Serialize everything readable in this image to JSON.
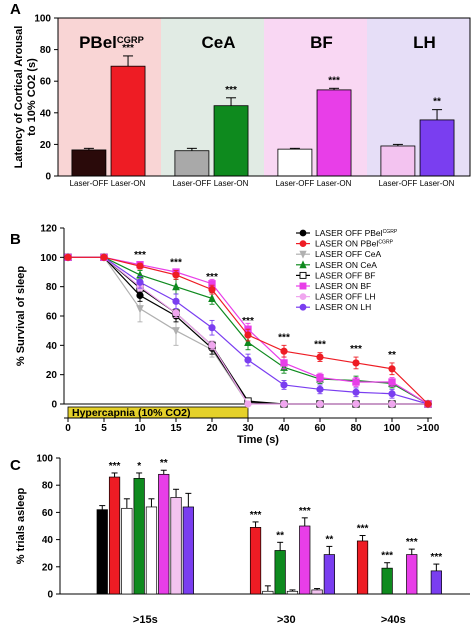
{
  "chart_data": [
    {
      "panel": "A",
      "type": "bar",
      "ylabel_lines": [
        "Latency of Cortical Arousal",
        "to 10% CO2 (s)"
      ],
      "ylim": [
        0,
        100
      ],
      "yticks": [
        0,
        20,
        40,
        60,
        80,
        100
      ],
      "groups": [
        {
          "name": "PBel",
          "name_sup": "CGRP",
          "bg": "#f9d5d5",
          "bars": [
            {
              "label": "Laser-OFF",
              "value": 16.5,
              "err": 1.0,
              "color": "#2a0a0a",
              "stars": ""
            },
            {
              "label": "Laser-ON",
              "value": 69.5,
              "err": 6.5,
              "color": "#ee1c24",
              "stars": "***"
            }
          ]
        },
        {
          "name": "CeA",
          "name_sup": "",
          "bg": "#e1ebe4",
          "bars": [
            {
              "label": "Laser-OFF",
              "value": 16.0,
              "err": 1.5,
              "color": "#a9a9a9",
              "stars": ""
            },
            {
              "label": "Laser-ON",
              "value": 44.5,
              "err": 5.0,
              "color": "#0e8a1e",
              "stars": "***"
            }
          ]
        },
        {
          "name": "BF",
          "name_sup": "",
          "bg": "#f9d7f3",
          "bars": [
            {
              "label": "Laser-OFF",
              "value": 17.0,
              "err": 0.5,
              "color": "#ffffff",
              "stars": ""
            },
            {
              "label": "Laser-ON",
              "value": 54.5,
              "err": 1.0,
              "color": "#e83ee8",
              "stars": "***"
            }
          ]
        },
        {
          "name": "LH",
          "name_sup": "",
          "bg": "#e6def7",
          "bars": [
            {
              "label": "Laser-OFF",
              "value": 19.0,
              "err": 1.0,
              "color": "#f3c3f0",
              "stars": ""
            },
            {
              "label": "Laser-ON",
              "value": 35.5,
              "err": 6.5,
              "color": "#7a3ef0",
              "stars": "**"
            }
          ]
        }
      ]
    },
    {
      "panel": "B",
      "type": "line",
      "ylabel": "% Survival of sleep",
      "xlabel": "Time (s)",
      "ylim": [
        0,
        120
      ],
      "yticks": [
        0,
        20,
        40,
        60,
        80,
        100,
        120
      ],
      "x": [
        "0",
        "5",
        "10",
        "15",
        "20",
        "30",
        "40",
        "60",
        "80",
        "100",
        ">100"
      ],
      "stim_label": "Hypercapnia (10% CO2)",
      "stim_range": [
        "0",
        "30"
      ],
      "stars": [
        {
          "x": "10",
          "text": "***"
        },
        {
          "x": "15",
          "text": "***"
        },
        {
          "x": "20",
          "text": "***"
        },
        {
          "x": "30",
          "text": "***"
        },
        {
          "x": "40",
          "text": "***"
        },
        {
          "x": "60",
          "text": "***"
        },
        {
          "x": "80",
          "text": "***"
        },
        {
          "x": "100",
          "text": "**"
        }
      ],
      "series": [
        {
          "name": "LASER OFF PBel",
          "sup": "CGRP",
          "color": "#000000",
          "fill": "#000000",
          "marker": "circle",
          "values": [
            100,
            100,
            74,
            60,
            38,
            1,
            0,
            0,
            0,
            0,
            0
          ],
          "err": [
            0,
            0,
            4,
            4,
            4,
            1,
            0,
            0,
            0,
            0,
            0
          ]
        },
        {
          "name": "LASER ON PBel",
          "sup": "CGRP",
          "color": "#ee1c24",
          "fill": "#ee1c24",
          "marker": "circle",
          "values": [
            100,
            100,
            94,
            88,
            78,
            47,
            36,
            32,
            28,
            24,
            0
          ],
          "err": [
            0,
            0,
            2,
            3,
            3,
            4,
            4,
            3,
            4,
            4,
            0
          ]
        },
        {
          "name": "LASER OFF CeA",
          "sup": "",
          "color": "#b0b0b0",
          "fill": "#b0b0b0",
          "marker": "tri-down",
          "values": [
            100,
            100,
            65,
            50,
            37,
            0,
            0,
            0,
            0,
            0,
            0
          ],
          "err": [
            0,
            0,
            9,
            10,
            5,
            1,
            0,
            0,
            0,
            0,
            0
          ]
        },
        {
          "name": "LASER ON CeA",
          "sup": "",
          "color": "#0e8a1e",
          "fill": "#0e8a1e",
          "marker": "tri-up",
          "values": [
            100,
            100,
            88,
            80,
            72,
            42,
            25,
            17,
            16,
            14,
            0
          ],
          "err": [
            0,
            0,
            3,
            5,
            4,
            5,
            4,
            3,
            3,
            3,
            0
          ]
        },
        {
          "name": "LASER OFF BF",
          "sup": "",
          "color": "#000000",
          "fill": "#ffffff",
          "marker": "square",
          "values": [
            100,
            100,
            79,
            62,
            40,
            2,
            0,
            0,
            0,
            0,
            0
          ],
          "err": [
            0,
            0,
            3,
            3,
            3,
            1,
            0,
            0,
            0,
            0,
            0
          ]
        },
        {
          "name": "LASER ON BF",
          "sup": "",
          "color": "#e83ee8",
          "fill": "#e83ee8",
          "marker": "square",
          "values": [
            100,
            100,
            95,
            90,
            82,
            51,
            28,
            18,
            15,
            15,
            0
          ],
          "err": [
            0,
            0,
            2,
            2,
            3,
            4,
            4,
            3,
            3,
            3,
            0
          ]
        },
        {
          "name": "LASER OFF LH",
          "sup": "",
          "color": "#f0a6ef",
          "fill": "#f0a6ef",
          "marker": "circle",
          "values": [
            100,
            100,
            80,
            62,
            40,
            0,
            0,
            0,
            0,
            0,
            0
          ],
          "err": [
            0,
            0,
            3,
            3,
            3,
            1,
            0,
            0,
            0,
            0,
            0
          ]
        },
        {
          "name": "LASER ON LH",
          "sup": "",
          "color": "#7a3ef0",
          "fill": "#7a3ef0",
          "marker": "circle",
          "values": [
            100,
            100,
            83,
            70,
            52,
            30,
            13,
            10,
            8,
            7,
            0
          ],
          "err": [
            0,
            0,
            4,
            5,
            5,
            4,
            3,
            3,
            3,
            3,
            0
          ]
        }
      ]
    },
    {
      "panel": "C",
      "type": "bar",
      "ylabel": "% trials asleep",
      "ylim": [
        0,
        100
      ],
      "yticks": [
        0,
        20,
        40,
        60,
        80,
        100
      ],
      "groups": [
        {
          "label": ">15s",
          "bars": [
            {
              "value": 62,
              "err": 3,
              "color": "#000000",
              "stars": ""
            },
            {
              "value": 86,
              "err": 3,
              "color": "#ee1c24",
              "stars": "***"
            },
            {
              "value": 63,
              "err": 7,
              "color": "#ffffff",
              "stars": ""
            },
            {
              "value": 85,
              "err": 4,
              "color": "#0e8a1e",
              "stars": "*"
            },
            {
              "value": 64,
              "err": 6,
              "color": "#ffffff",
              "stars": ""
            },
            {
              "value": 88,
              "err": 3,
              "color": "#e83ee8",
              "stars": "**"
            },
            {
              "value": 71,
              "err": 6,
              "color": "#f3c3f0",
              "stars": ""
            },
            {
              "value": 64,
              "err": 10,
              "color": "#7a3ef0",
              "stars": ""
            }
          ]
        },
        {
          "label": ">30",
          "bars": [
            {
              "value": 0,
              "err": 0,
              "color": "#000000",
              "stars": ""
            },
            {
              "value": 49,
              "err": 4,
              "color": "#ee1c24",
              "stars": "***"
            },
            {
              "value": 2,
              "err": 4,
              "color": "#ffffff",
              "stars": ""
            },
            {
              "value": 32,
              "err": 6,
              "color": "#0e8a1e",
              "stars": "**"
            },
            {
              "value": 2,
              "err": 1,
              "color": "#ffffff",
              "stars": ""
            },
            {
              "value": 50,
              "err": 6,
              "color": "#e83ee8",
              "stars": "***"
            },
            {
              "value": 3,
              "err": 1,
              "color": "#f3c3f0",
              "stars": ""
            },
            {
              "value": 29,
              "err": 6,
              "color": "#7a3ef0",
              "stars": "**"
            }
          ]
        },
        {
          "label": ">40s",
          "bars": [
            {
              "value": 0,
              "err": 0,
              "color": "#000000",
              "stars": ""
            },
            {
              "value": 39,
              "err": 4,
              "color": "#ee1c24",
              "stars": "***"
            },
            {
              "value": 0,
              "err": 0,
              "color": "#ffffff",
              "stars": ""
            },
            {
              "value": 19,
              "err": 4,
              "color": "#0e8a1e",
              "stars": "***"
            },
            {
              "value": 0,
              "err": 0,
              "color": "#ffffff",
              "stars": ""
            },
            {
              "value": 29,
              "err": 4,
              "color": "#e83ee8",
              "stars": "***"
            },
            {
              "value": 0,
              "err": 0,
              "color": "#f3c3f0",
              "stars": ""
            },
            {
              "value": 17,
              "err": 5,
              "color": "#7a3ef0",
              "stars": "***"
            }
          ]
        }
      ]
    }
  ]
}
